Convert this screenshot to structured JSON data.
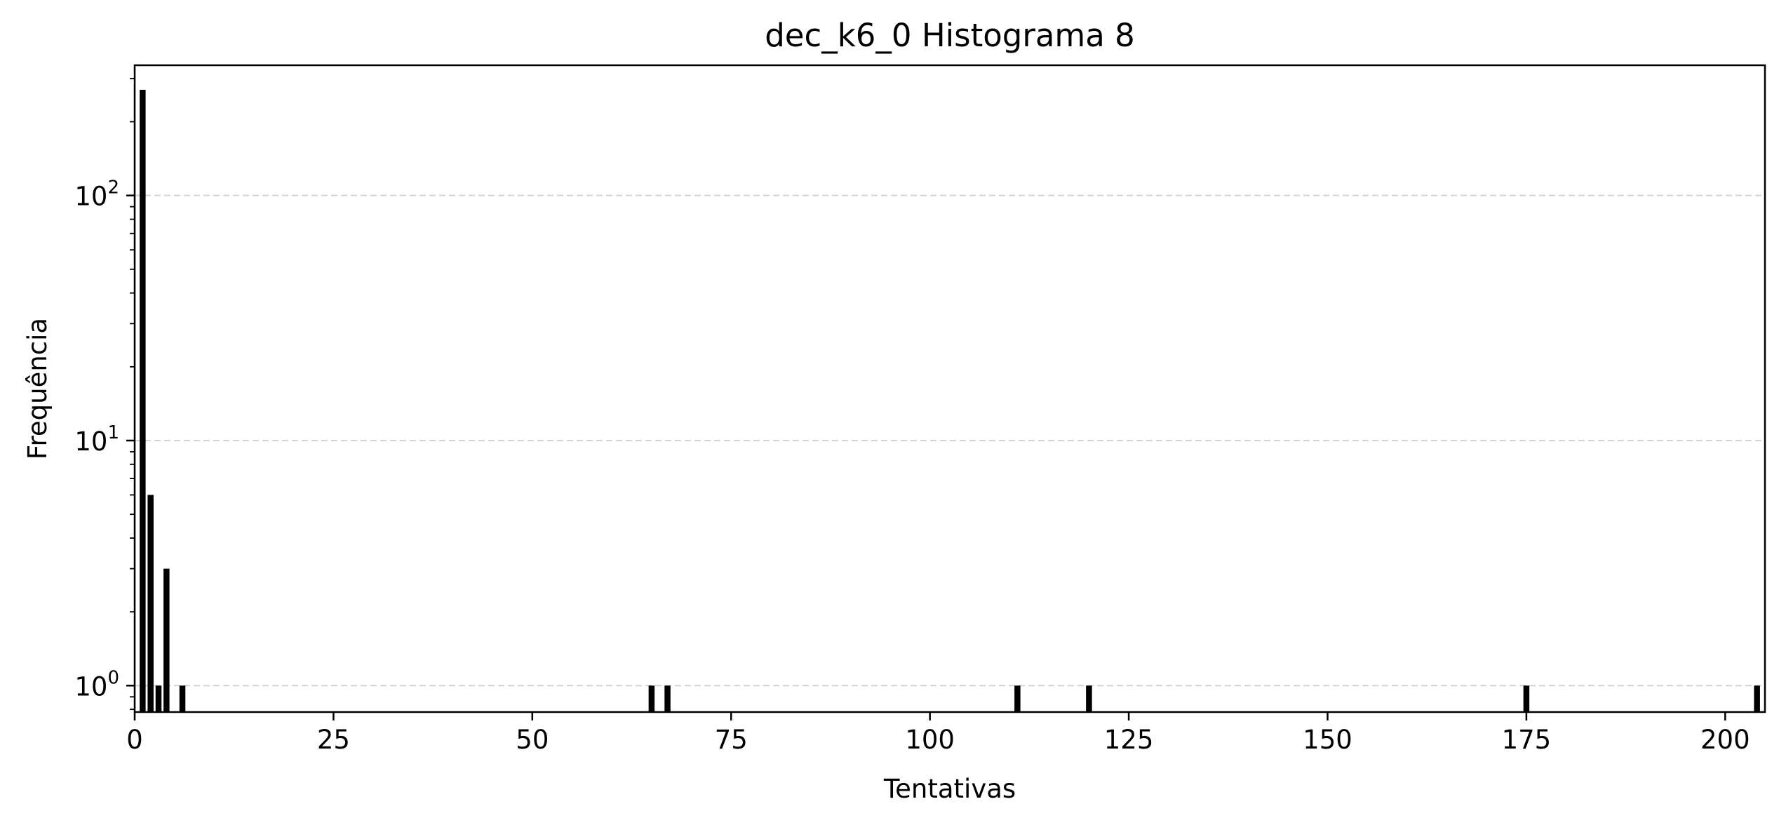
{
  "chart_data": {
    "type": "bar",
    "title": "dec_k6_0 Histograma 8",
    "xlabel": "Tentativas",
    "ylabel": "Frequência",
    "yscale": "log",
    "xlim": [
      0,
      205
    ],
    "ylim": [
      0.78,
      340
    ],
    "xticks": [
      0,
      25,
      50,
      75,
      100,
      125,
      150,
      175,
      200
    ],
    "yticks": [
      {
        "value": 1,
        "base": "10",
        "exp": "0"
      },
      {
        "value": 10,
        "base": "10",
        "exp": "1"
      },
      {
        "value": 100,
        "base": "10",
        "exp": "2"
      }
    ],
    "grid": "y, dashed",
    "bar_color": "#000000",
    "grid_color": "#d3d3d3",
    "data": [
      {
        "x": 1,
        "y": 270
      },
      {
        "x": 2,
        "y": 6
      },
      {
        "x": 3,
        "y": 1
      },
      {
        "x": 4,
        "y": 3
      },
      {
        "x": 6,
        "y": 1
      },
      {
        "x": 65,
        "y": 1
      },
      {
        "x": 67,
        "y": 1
      },
      {
        "x": 111,
        "y": 1
      },
      {
        "x": 120,
        "y": 1
      },
      {
        "x": 175,
        "y": 1
      },
      {
        "x": 204,
        "y": 1
      }
    ]
  }
}
